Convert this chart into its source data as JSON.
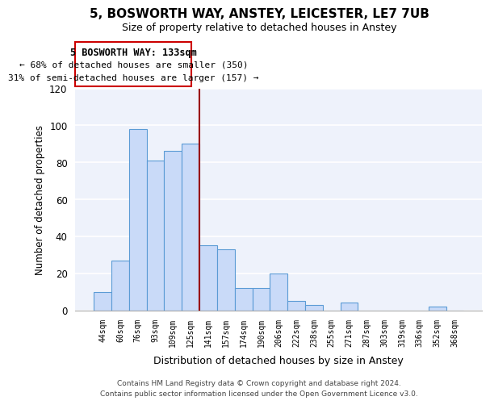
{
  "title": "5, BOSWORTH WAY, ANSTEY, LEICESTER, LE7 7UB",
  "subtitle": "Size of property relative to detached houses in Anstey",
  "xlabel": "Distribution of detached houses by size in Anstey",
  "ylabel": "Number of detached properties",
  "bar_labels": [
    "44sqm",
    "60sqm",
    "76sqm",
    "93sqm",
    "109sqm",
    "125sqm",
    "141sqm",
    "157sqm",
    "174sqm",
    "190sqm",
    "206sqm",
    "222sqm",
    "238sqm",
    "255sqm",
    "271sqm",
    "287sqm",
    "303sqm",
    "319sqm",
    "336sqm",
    "352sqm",
    "368sqm"
  ],
  "bar_values": [
    10,
    27,
    98,
    81,
    86,
    90,
    35,
    33,
    12,
    12,
    20,
    5,
    3,
    0,
    4,
    0,
    0,
    0,
    0,
    2,
    0
  ],
  "bar_color": "#c9daf8",
  "bar_edge_color": "#5b9bd5",
  "vline_x_index": 6,
  "marker_label": "5 BOSWORTH WAY: 133sqm",
  "annotation_line1": "← 68% of detached houses are smaller (350)",
  "annotation_line2": "31% of semi-detached houses are larger (157) →",
  "vline_color": "#990000",
  "annotation_box_edge": "#cc0000",
  "ylim": [
    0,
    120
  ],
  "yticks": [
    0,
    20,
    40,
    60,
    80,
    100,
    120
  ],
  "footer_line1": "Contains HM Land Registry data © Crown copyright and database right 2024.",
  "footer_line2": "Contains public sector information licensed under the Open Government Licence v3.0.",
  "bg_color": "#ffffff",
  "plot_bg_color": "#eef2fb"
}
